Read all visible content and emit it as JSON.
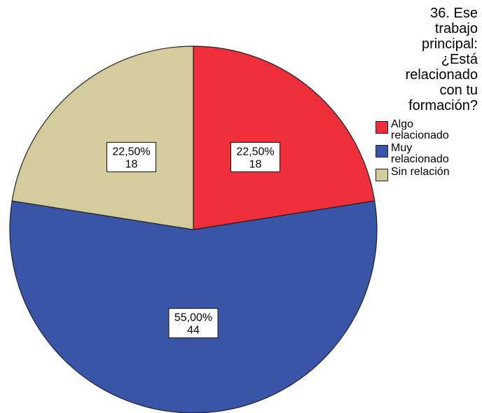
{
  "chart_data": {
    "type": "pie",
    "title": "36. Ese trabajo principal: ¿Está relacionado con tu formación?",
    "legend_title_lines": [
      "36. Ese",
      "trabajo",
      "principal:",
      "¿Está",
      "relacionado",
      "con tu",
      "formación?"
    ],
    "legend_position": "right",
    "slices": [
      {
        "name": "Algo relacionado",
        "name_lines": [
          "Algo",
          "relacionado"
        ],
        "percent": 22.5,
        "percent_label": "22,50%",
        "count": 18,
        "color": "#ef2e3b"
      },
      {
        "name": "Muy relacionado",
        "name_lines": [
          "Muy",
          "relacionado"
        ],
        "percent": 55.0,
        "percent_label": "55,00%",
        "count": 44,
        "color": "#3a55a8"
      },
      {
        "name": "Sin relación",
        "name_lines": [
          "Sin relación"
        ],
        "percent": 22.5,
        "percent_label": "22,50%",
        "count": 18,
        "color": "#d3cb9b"
      }
    ]
  }
}
